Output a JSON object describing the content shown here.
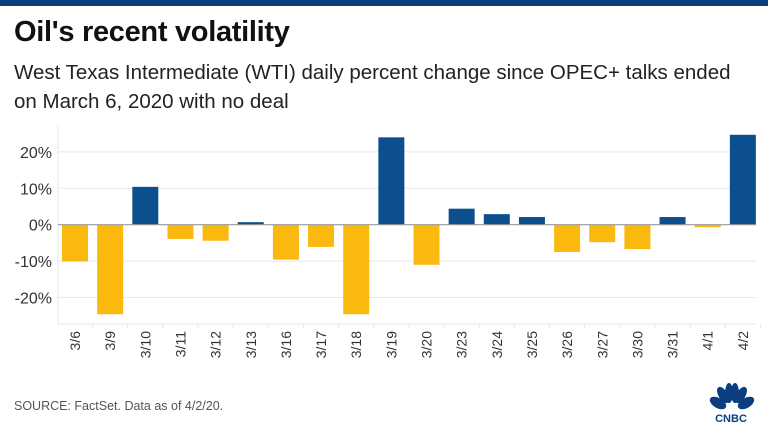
{
  "title": "Oil's recent volatility",
  "subtitle": "West Texas Intermediate (WTI) daily percent change since OPEC+ talks ended on March 6, 2020 with no deal",
  "source": "SOURCE: FactSet. Data as of 4/2/20.",
  "logo_text": "CNBC",
  "colors": {
    "positive": "#0b4f8f",
    "negative": "#fbb80f",
    "topbar": "#0b3e80"
  },
  "chart_data": {
    "type": "bar",
    "title": "Oil's recent volatility",
    "xlabel": "",
    "ylabel": "",
    "ylim": [
      -27,
      27
    ],
    "yticks": [
      -20,
      -10,
      0,
      10,
      20
    ],
    "ytick_labels": [
      "-20%",
      "-10%",
      "0%",
      "10%",
      "20%"
    ],
    "grid": true,
    "categories": [
      "3/6",
      "3/9",
      "3/10",
      "3/11",
      "3/12",
      "3/13",
      "3/16",
      "3/17",
      "3/18",
      "3/19",
      "3/20",
      "3/23",
      "3/24",
      "3/25",
      "3/26",
      "3/27",
      "3/30",
      "3/31",
      "4/1",
      "4/2"
    ],
    "values": [
      -10.1,
      -24.6,
      10.4,
      -3.9,
      -4.4,
      0.7,
      -9.6,
      -6.1,
      -24.6,
      24.0,
      -11.0,
      4.4,
      2.9,
      2.1,
      -7.5,
      -4.8,
      -6.7,
      2.1,
      -0.7,
      24.7
    ]
  }
}
